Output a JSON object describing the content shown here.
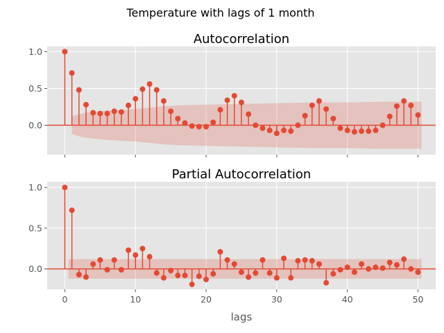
{
  "figure": {
    "suptitle": "Temperature with lags of 1 month"
  },
  "chart_data": [
    {
      "type": "stem",
      "title": "Autocorrelation",
      "xlabel": "",
      "ylabel": "",
      "xlim": [
        -2.5,
        52.5
      ],
      "ylim": [
        -0.4,
        1.07
      ],
      "xticks": [
        0,
        10,
        20,
        30,
        40,
        50
      ],
      "xtick_labels_visible": false,
      "yticks": [
        0.0,
        0.5,
        1.0
      ],
      "ytick_labels": [
        "0.0",
        "0.5",
        "1.0"
      ],
      "grid": true,
      "series": [
        {
          "lags": [
            0,
            1,
            2,
            3,
            4,
            5,
            6,
            7,
            8,
            9,
            10,
            11,
            12,
            13,
            14,
            15,
            16,
            17,
            18,
            19,
            20,
            21,
            22,
            23,
            24,
            25,
            26,
            27,
            28,
            29,
            30,
            31,
            32,
            33,
            34,
            35,
            36,
            37,
            38,
            39,
            40,
            41,
            42,
            43,
            44,
            45,
            46,
            47,
            48,
            49,
            50
          ],
          "values": [
            1.0,
            0.71,
            0.48,
            0.28,
            0.17,
            0.16,
            0.16,
            0.19,
            0.18,
            0.27,
            0.36,
            0.49,
            0.56,
            0.48,
            0.33,
            0.19,
            0.09,
            0.03,
            -0.01,
            -0.02,
            -0.02,
            0.04,
            0.21,
            0.34,
            0.4,
            0.31,
            0.15,
            0.0,
            -0.04,
            -0.07,
            -0.11,
            -0.07,
            -0.08,
            0.0,
            0.13,
            0.27,
            0.33,
            0.22,
            0.09,
            -0.04,
            -0.07,
            -0.09,
            -0.08,
            -0.08,
            -0.07,
            0.0,
            0.12,
            0.26,
            0.33,
            0.27,
            0.14
          ]
        }
      ],
      "confidence_band": {
        "lags": [
          1,
          2,
          3,
          4,
          5,
          6,
          8,
          10,
          12,
          14,
          16,
          20,
          25,
          30,
          35,
          40,
          45,
          50.5
        ],
        "upper": [
          0.12,
          0.15,
          0.17,
          0.18,
          0.19,
          0.2,
          0.21,
          0.22,
          0.24,
          0.26,
          0.27,
          0.28,
          0.29,
          0.3,
          0.31,
          0.31,
          0.32,
          0.32
        ],
        "lower": [
          -0.12,
          -0.15,
          -0.17,
          -0.18,
          -0.19,
          -0.2,
          -0.21,
          -0.22,
          -0.24,
          -0.26,
          -0.27,
          -0.28,
          -0.29,
          -0.3,
          -0.31,
          -0.31,
          -0.32,
          -0.32
        ]
      },
      "colors": {
        "stem": "#E24A33",
        "band": "#E24A33",
        "background": "#E5E5E5",
        "grid": "#FFFFFF"
      }
    },
    {
      "type": "stem",
      "title": "Partial Autocorrelation",
      "xlabel": "lags",
      "ylabel": "",
      "xlim": [
        -2.5,
        52.5
      ],
      "ylim": [
        -0.25,
        1.07
      ],
      "xticks": [
        0,
        10,
        20,
        30,
        40,
        50
      ],
      "xtick_labels": [
        "0",
        "10",
        "20",
        "30",
        "40",
        "50"
      ],
      "yticks": [
        0.0,
        0.5,
        1.0
      ],
      "ytick_labels": [
        "0.0",
        "0.5",
        "1.0"
      ],
      "grid": true,
      "series": [
        {
          "lags": [
            0,
            1,
            2,
            3,
            4,
            5,
            6,
            7,
            8,
            9,
            10,
            11,
            12,
            13,
            14,
            15,
            16,
            17,
            18,
            19,
            20,
            21,
            22,
            23,
            24,
            25,
            26,
            27,
            28,
            29,
            30,
            31,
            32,
            33,
            34,
            35,
            36,
            37,
            38,
            39,
            40,
            41,
            42,
            43,
            44,
            45,
            46,
            47,
            48,
            49,
            50
          ],
          "values": [
            1.0,
            0.72,
            -0.07,
            -0.1,
            0.06,
            0.11,
            -0.01,
            0.11,
            -0.01,
            0.23,
            0.17,
            0.25,
            0.15,
            -0.05,
            -0.11,
            -0.02,
            -0.08,
            -0.08,
            -0.19,
            -0.09,
            -0.13,
            -0.06,
            0.21,
            0.11,
            0.06,
            -0.04,
            -0.1,
            -0.05,
            0.11,
            -0.05,
            -0.11,
            0.13,
            -0.11,
            0.1,
            0.11,
            0.1,
            0.06,
            -0.17,
            -0.06,
            -0.01,
            0.02,
            -0.04,
            0.06,
            0.0,
            0.02,
            0.01,
            0.08,
            0.05,
            0.12,
            0.0,
            -0.04
          ]
        }
      ],
      "confidence_band": {
        "lags": [
          0.5,
          50.5
        ],
        "upper": [
          0.12,
          0.12
        ],
        "lower": [
          -0.12,
          -0.12
        ]
      },
      "colors": {
        "stem": "#E24A33",
        "band": "#E24A33",
        "background": "#E5E5E5",
        "grid": "#FFFFFF"
      }
    }
  ]
}
